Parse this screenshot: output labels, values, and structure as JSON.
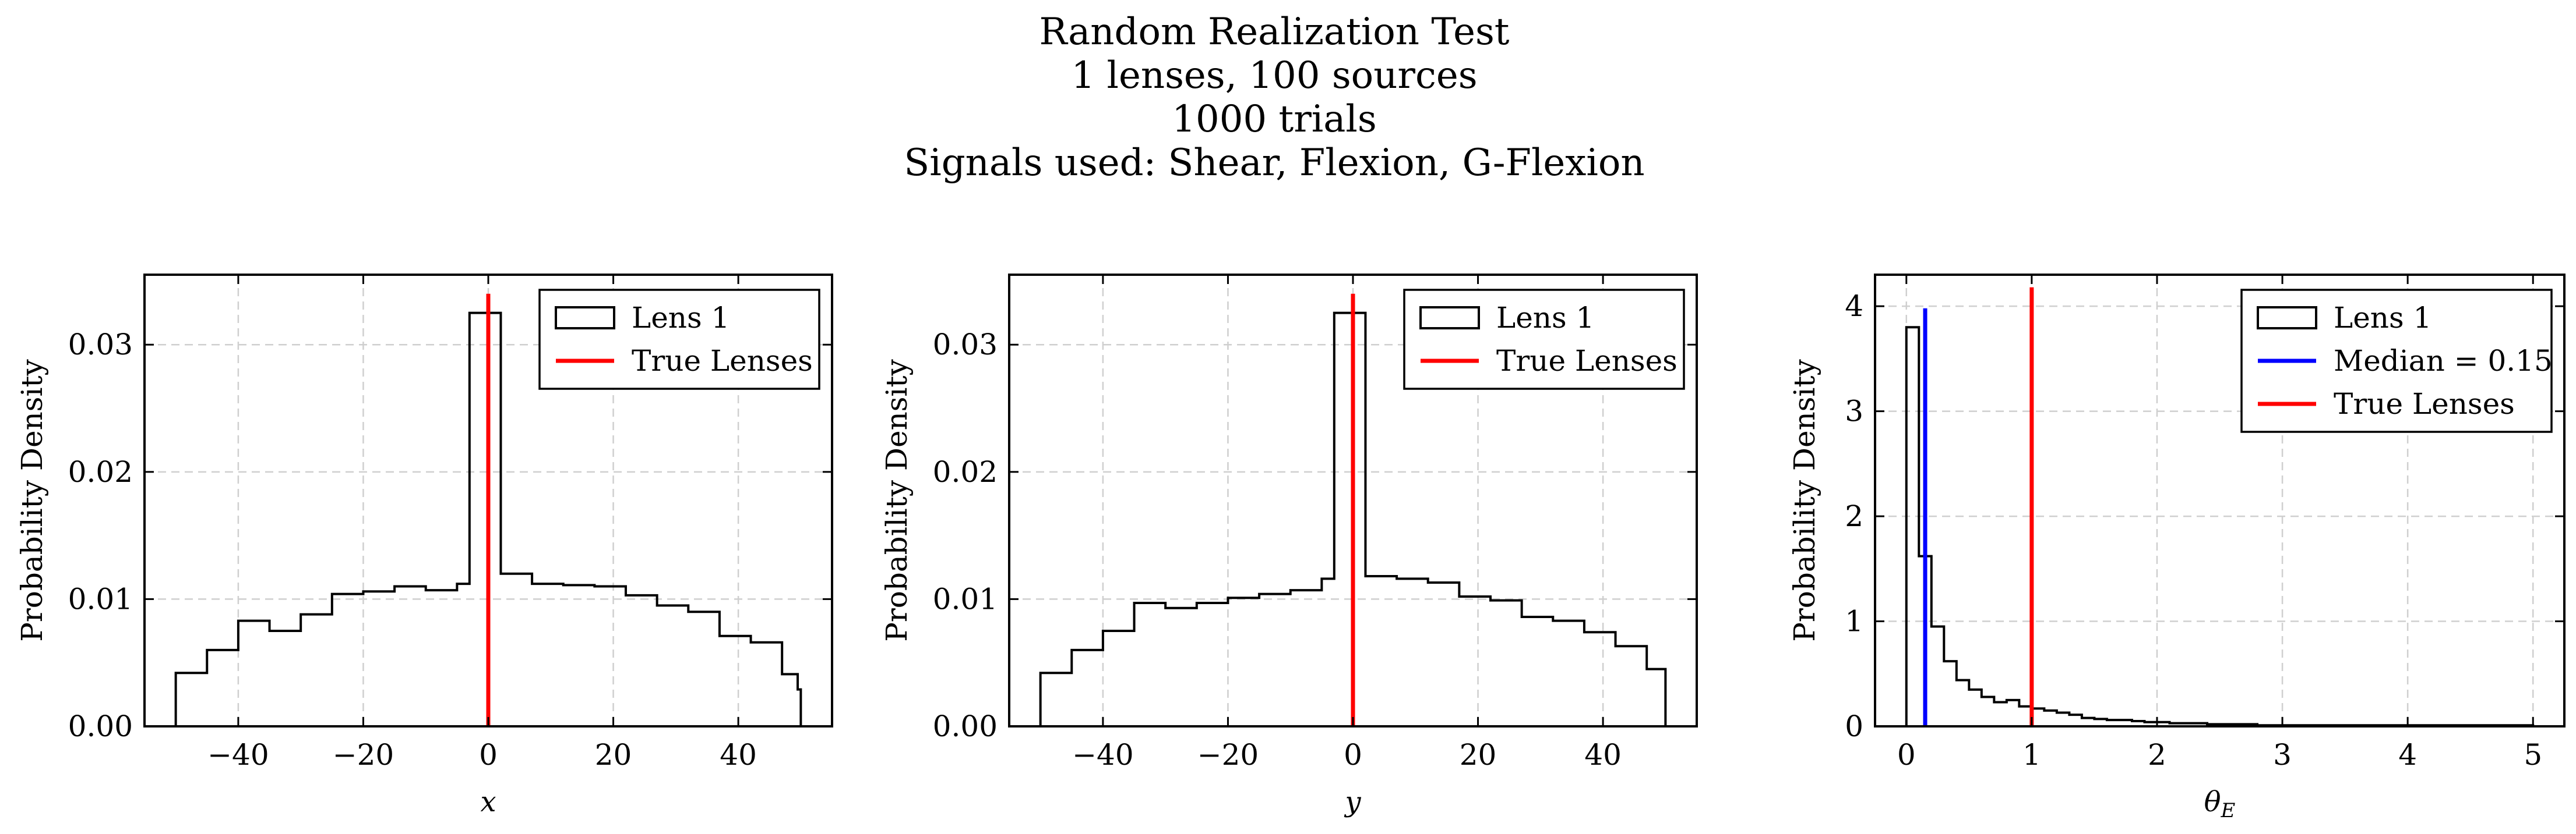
{
  "figure": {
    "title_lines": [
      "Random Realization Test",
      "1 lenses, 100 sources",
      "1000 trials",
      "Signals used: Shear, Flexion, G-Flexion"
    ]
  },
  "colors": {
    "histogram": "#000000",
    "true_lenses": "#ff0000",
    "median": "#0000ff",
    "grid": "#cfcfcf"
  },
  "chart_data": [
    {
      "type": "bar",
      "histtype": "step",
      "xlabel": "x",
      "ylabel": "Probability Density",
      "xlim": [
        -55,
        55
      ],
      "ylim": [
        0,
        0.0355
      ],
      "xticks": [
        -40,
        -20,
        0,
        20,
        40
      ],
      "xtick_labels": [
        "−40",
        "−20",
        "0",
        "20",
        "40"
      ],
      "yticks": [
        0,
        0.01,
        0.02,
        0.03
      ],
      "ytick_labels": [
        "0.00",
        "0.01",
        "0.02",
        "0.03"
      ],
      "grid": true,
      "legend_position": "top-right",
      "bin_edges": [
        -50,
        -45,
        -40,
        -35,
        -30,
        -25,
        -20,
        -15,
        -10,
        -5,
        -3,
        2,
        7,
        12,
        17,
        22,
        27,
        32,
        37,
        42,
        47,
        49.5,
        50
      ],
      "values": [
        0.0042,
        0.006,
        0.0083,
        0.0075,
        0.0088,
        0.0104,
        0.0106,
        0.011,
        0.0107,
        0.0112,
        0.0325,
        0.012,
        0.0112,
        0.0111,
        0.011,
        0.0103,
        0.0095,
        0.009,
        0.0071,
        0.0066,
        0.0041,
        0.0029
      ],
      "series": [
        {
          "name": "Lens 1",
          "kind": "histogram"
        },
        {
          "name": "True Lenses",
          "kind": "vline",
          "x": 0,
          "y_top": 0.034
        }
      ]
    },
    {
      "type": "bar",
      "histtype": "step",
      "xlabel": "y",
      "ylabel": "Probability Density",
      "xlim": [
        -55,
        55
      ],
      "ylim": [
        0,
        0.0355
      ],
      "xticks": [
        -40,
        -20,
        0,
        20,
        40
      ],
      "xtick_labels": [
        "−40",
        "−20",
        "0",
        "20",
        "40"
      ],
      "yticks": [
        0,
        0.01,
        0.02,
        0.03
      ],
      "ytick_labels": [
        "0.00",
        "0.01",
        "0.02",
        "0.03"
      ],
      "grid": true,
      "legend_position": "top-right",
      "bin_edges": [
        -50,
        -45,
        -40,
        -35,
        -30,
        -25,
        -20,
        -15,
        -10,
        -5,
        -3,
        2,
        7,
        12,
        17,
        22,
        27,
        32,
        37,
        42,
        47,
        50
      ],
      "values": [
        0.0042,
        0.006,
        0.0075,
        0.0097,
        0.0093,
        0.0097,
        0.0101,
        0.0104,
        0.0107,
        0.0116,
        0.0325,
        0.0118,
        0.0116,
        0.0113,
        0.0102,
        0.0099,
        0.0086,
        0.0083,
        0.0074,
        0.0063,
        0.0045
      ],
      "series": [
        {
          "name": "Lens 1",
          "kind": "histogram"
        },
        {
          "name": "True Lenses",
          "kind": "vline",
          "x": 0,
          "y_top": 0.034
        }
      ]
    },
    {
      "type": "bar",
      "histtype": "step",
      "xlabel": "θE",
      "ylabel": "Probability Density",
      "xlim": [
        -0.25,
        5.25
      ],
      "ylim": [
        0,
        4.3
      ],
      "xticks": [
        0,
        1,
        2,
        3,
        4,
        5
      ],
      "xtick_labels": [
        "0",
        "1",
        "2",
        "3",
        "4",
        "5"
      ],
      "yticks": [
        0,
        1,
        2,
        3,
        4
      ],
      "ytick_labels": [
        "0",
        "1",
        "2",
        "3",
        "4"
      ],
      "grid": true,
      "legend_position": "top-right",
      "bin_edges": [
        0,
        0.1,
        0.2,
        0.3,
        0.4,
        0.5,
        0.6,
        0.7,
        0.8,
        0.9,
        1.0,
        1.1,
        1.2,
        1.3,
        1.4,
        1.5,
        1.6,
        1.7,
        1.8,
        1.9,
        2.0,
        2.1,
        2.2,
        2.3,
        2.4,
        2.5,
        2.6,
        2.7,
        2.8,
        2.9,
        3.0,
        3.1,
        3.2,
        3.3,
        3.4,
        3.5,
        3.6,
        3.7,
        3.8,
        3.9,
        4.0,
        4.1,
        4.2,
        4.3,
        4.4,
        4.5,
        4.6,
        4.7,
        4.8,
        4.9,
        5.0
      ],
      "values": [
        3.8,
        1.62,
        0.95,
        0.62,
        0.44,
        0.35,
        0.28,
        0.23,
        0.25,
        0.19,
        0.17,
        0.15,
        0.13,
        0.11,
        0.08,
        0.07,
        0.06,
        0.06,
        0.05,
        0.04,
        0.04,
        0.03,
        0.03,
        0.03,
        0.02,
        0.02,
        0.02,
        0.02,
        0.01,
        0.01,
        0.01,
        0.01,
        0.01,
        0.01,
        0.01,
        0.01,
        0.01,
        0.01,
        0.01,
        0.01,
        0.01,
        0.01,
        0.01,
        0.01,
        0.01,
        0.01,
        0.01,
        0.01,
        0.01,
        0.01
      ],
      "series": [
        {
          "name": "Lens 1",
          "kind": "histogram"
        },
        {
          "name": "Median = 0.15",
          "kind": "vline",
          "x": 0.15,
          "y_top": 3.98
        },
        {
          "name": "True Lenses",
          "kind": "vline",
          "x": 1,
          "y_top": 4.18
        }
      ]
    }
  ]
}
